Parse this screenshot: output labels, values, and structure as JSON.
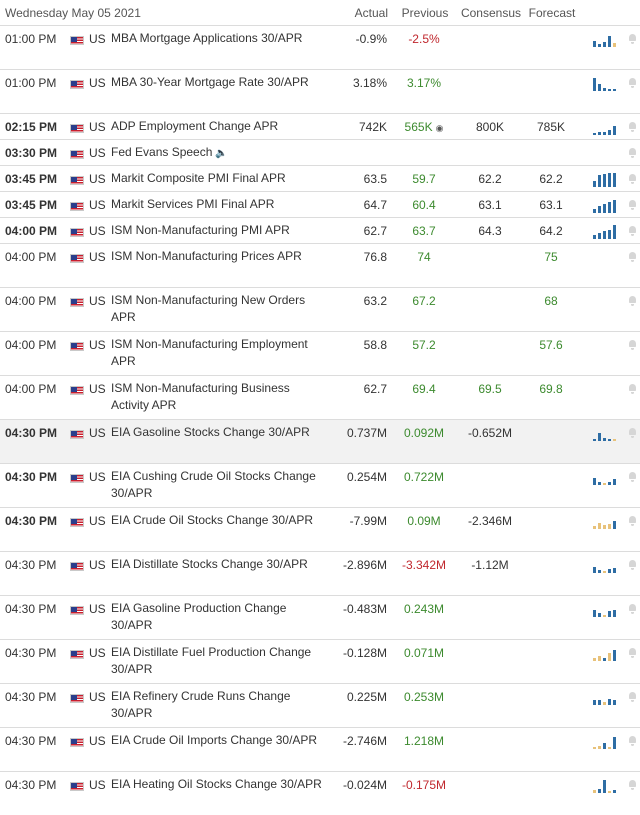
{
  "header": {
    "date": "Wednesday May 05 2021",
    "columns": {
      "actual": "Actual",
      "previous": "Previous",
      "consensus": "Consensus",
      "forecast": "Forecast"
    }
  },
  "country": "US",
  "colors": {
    "positive": "#3c8a2e",
    "negative": "#c0272d",
    "sparkline": "#2e6da4",
    "sparkline_forecast": "#e8c27a"
  },
  "events": [
    {
      "time": "01:00 PM",
      "event": "MBA Mortgage Applications 30/APR",
      "actual": "-0.9%",
      "previous": "-2.5%",
      "previous_tone": "neg",
      "consensus": "",
      "forecast": ""
    },
    {
      "time": "01:00 PM",
      "event": "MBA 30-Year Mortgage Rate 30/APR",
      "actual": "3.18%",
      "previous": "3.17%",
      "previous_tone": "pos",
      "consensus": "",
      "forecast": ""
    },
    {
      "time": "02:15 PM",
      "event": "ADP Employment Change APR",
      "actual": "742K",
      "previous": "565K",
      "previous_tone": "pos",
      "consensus": "800K",
      "forecast": "785K"
    },
    {
      "time": "03:30 PM",
      "event": "Fed Evans Speech",
      "actual": "",
      "previous": "",
      "previous_tone": "",
      "consensus": "",
      "forecast": ""
    },
    {
      "time": "03:45 PM",
      "event": "Markit Composite PMI Final APR",
      "actual": "63.5",
      "previous": "59.7",
      "previous_tone": "pos",
      "consensus": "62.2",
      "forecast": "62.2"
    },
    {
      "time": "03:45 PM",
      "event": "Markit Services PMI Final APR",
      "actual": "64.7",
      "previous": "60.4",
      "previous_tone": "pos",
      "consensus": "63.1",
      "forecast": "63.1"
    },
    {
      "time": "04:00 PM",
      "event": "ISM Non-Manufacturing PMI APR",
      "actual": "62.7",
      "previous": "63.7",
      "previous_tone": "pos",
      "consensus": "64.3",
      "forecast": "64.2"
    },
    {
      "time": "04:00 PM",
      "event": "ISM Non-Manufacturing Prices APR",
      "actual": "76.8",
      "previous": "74",
      "previous_tone": "pos",
      "consensus": "",
      "forecast": "75"
    },
    {
      "time": "04:00 PM",
      "event": "ISM Non-Manufacturing New Orders APR",
      "actual": "63.2",
      "previous": "67.2",
      "previous_tone": "pos",
      "consensus": "",
      "forecast": "68"
    },
    {
      "time": "04:00 PM",
      "event": "ISM Non-Manufacturing Employment APR",
      "actual": "58.8",
      "previous": "57.2",
      "previous_tone": "pos",
      "consensus": "",
      "forecast": "57.6"
    },
    {
      "time": "04:00 PM",
      "event": "ISM Non-Manufacturing Business Activity APR",
      "actual": "62.7",
      "previous": "69.4",
      "previous_tone": "pos",
      "consensus": "69.5",
      "forecast": "69.8"
    },
    {
      "time": "04:30 PM",
      "event": "EIA Gasoline Stocks Change 30/APR",
      "actual": "0.737M",
      "previous": "0.092M",
      "previous_tone": "pos",
      "consensus": "-0.652M",
      "forecast": ""
    },
    {
      "time": "04:30 PM",
      "event": "EIA Cushing Crude Oil Stocks Change 30/APR",
      "actual": "0.254M",
      "previous": "0.722M",
      "previous_tone": "pos",
      "consensus": "",
      "forecast": ""
    },
    {
      "time": "04:30 PM",
      "event": "EIA Crude Oil Stocks Change 30/APR",
      "actual": "-7.99M",
      "previous": "0.09M",
      "previous_tone": "pos",
      "consensus": "-2.346M",
      "forecast": ""
    },
    {
      "time": "04:30 PM",
      "event": "EIA Distillate Stocks Change 30/APR",
      "actual": "-2.896M",
      "previous": "-3.342M",
      "previous_tone": "neg",
      "consensus": "-1.12M",
      "forecast": ""
    },
    {
      "time": "04:30 PM",
      "event": "EIA Gasoline Production Change 30/APR",
      "actual": "-0.483M",
      "previous": "0.243M",
      "previous_tone": "pos",
      "consensus": "",
      "forecast": ""
    },
    {
      "time": "04:30 PM",
      "event": "EIA Distillate Fuel Production Change 30/APR",
      "actual": "-0.128M",
      "previous": "0.071M",
      "previous_tone": "pos",
      "consensus": "",
      "forecast": ""
    },
    {
      "time": "04:30 PM",
      "event": "EIA Refinery Crude Runs Change 30/APR",
      "actual": "0.225M",
      "previous": "0.253M",
      "previous_tone": "pos",
      "consensus": "",
      "forecast": ""
    },
    {
      "time": "04:30 PM",
      "event": "EIA Crude Oil Imports Change 30/APR",
      "actual": "-2.746M",
      "previous": "1.218M",
      "previous_tone": "pos",
      "consensus": "",
      "forecast": ""
    },
    {
      "time": "04:30 PM",
      "event": "EIA Heating Oil Stocks Change 30/APR",
      "actual": "-0.024M",
      "previous": "-0.175M",
      "previous_tone": "neg",
      "consensus": "",
      "forecast": ""
    }
  ]
}
